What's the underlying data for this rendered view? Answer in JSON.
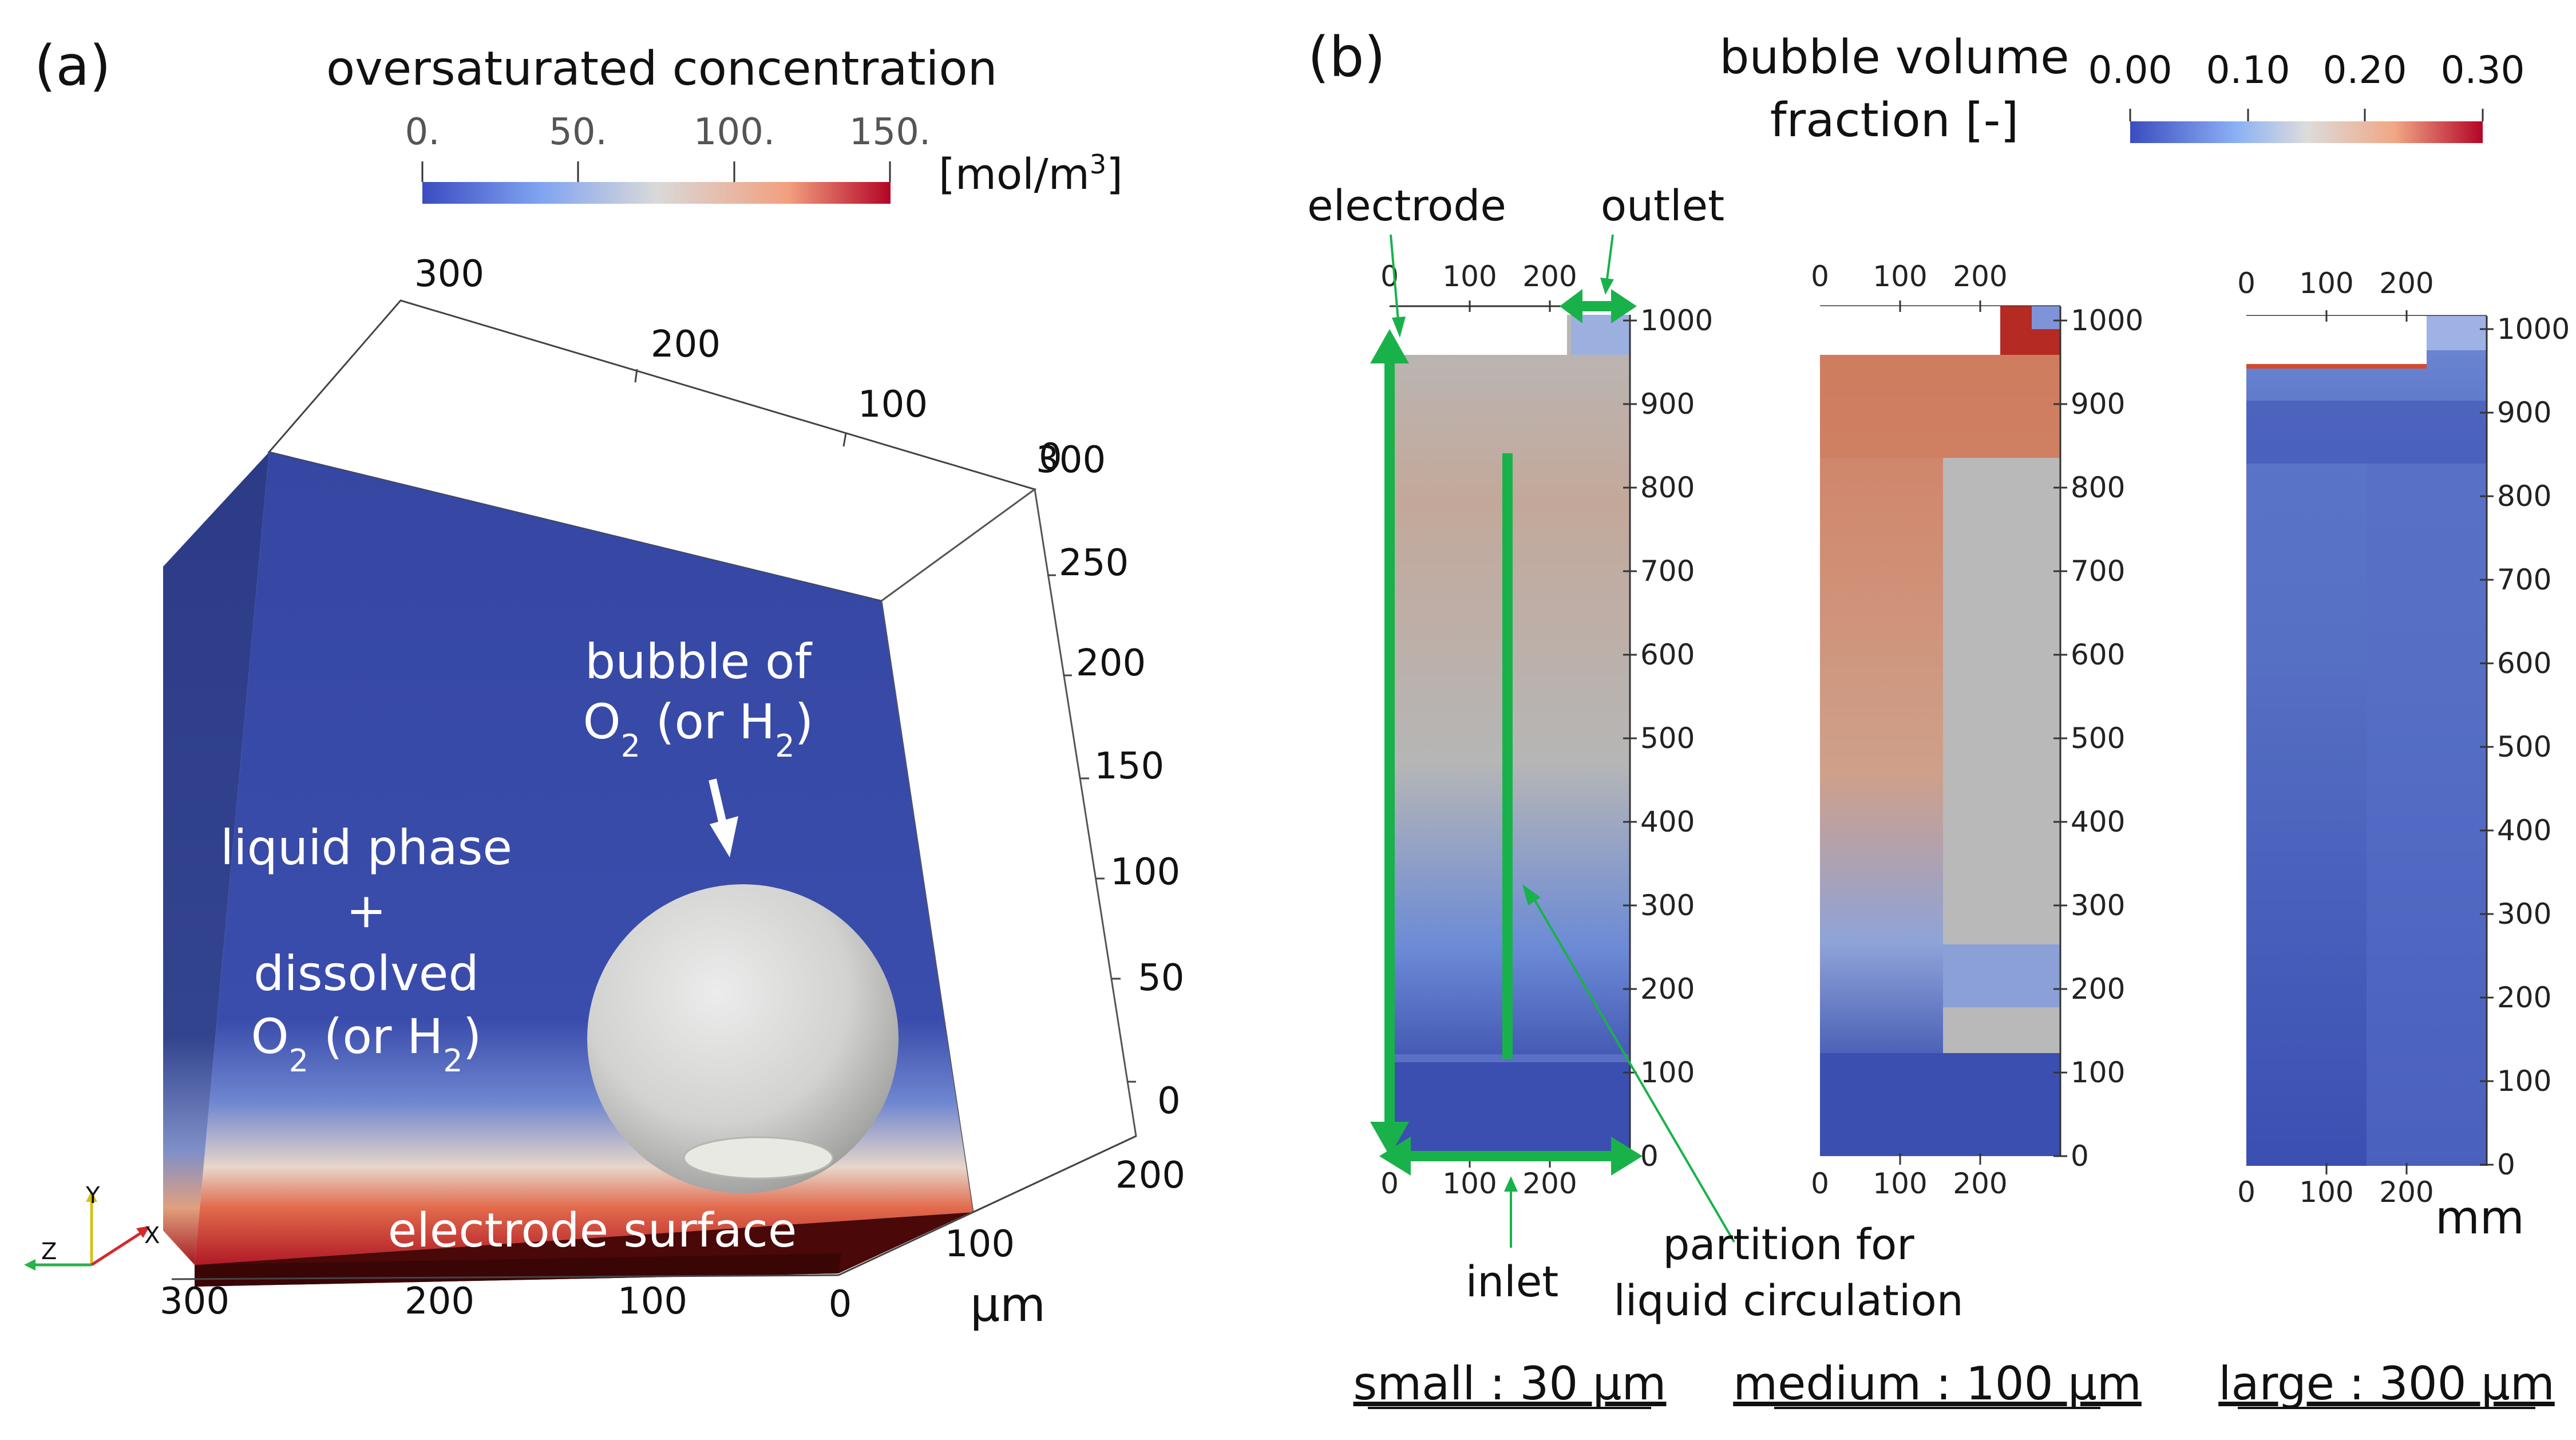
{
  "panel_a": {
    "label": "(a)",
    "colorbar": {
      "title": "oversaturated concentration",
      "ticks": [
        "0.",
        "50.",
        "100.",
        "150."
      ],
      "unit_prefix": "[mol/m",
      "unit_sup": "3",
      "unit_suffix": "]",
      "colors": [
        "#3b4cc0",
        "#c8c8c8",
        "#b40426"
      ]
    },
    "top_axis_ticks": [
      "300",
      "200",
      "100",
      "0"
    ],
    "right_axis_ticks": [
      "300",
      "250",
      "200",
      "150",
      "100",
      "50",
      "0"
    ],
    "bottom_left_ticks": [
      "300",
      "200",
      "100",
      "0"
    ],
    "bottom_right_ticks": [
      "200",
      "100"
    ],
    "unit": "μm",
    "bubble_label_line1": "bubble of",
    "bubble_label_o": "O",
    "bubble_label_sub1": "2",
    "bubble_label_mid": " (or H",
    "bubble_label_sub2": "2",
    "bubble_label_end": ")",
    "liquid_line1": "liquid phase",
    "liquid_line2": "+",
    "liquid_line3": "dissolved",
    "liquid_o": "O",
    "liquid_sub1": "2",
    "liquid_mid": " (or H",
    "liquid_sub2": "2",
    "liquid_end": ")",
    "electrode_surface": "electrode surface",
    "orientation_axes": [
      "Y",
      "Z",
      "X"
    ]
  },
  "panel_b": {
    "label": "(b)",
    "colorbar": {
      "title_line1": "bubble volume",
      "title_line2": "fraction [-]",
      "ticks": [
        "0.00",
        "0.10",
        "0.20",
        "0.30"
      ]
    },
    "annotations": {
      "electrode": "electrode",
      "outlet": "outlet",
      "inlet": "inlet",
      "partition_line1": "partition for",
      "partition_line2": "liquid circulation"
    },
    "x_ticks": [
      "0",
      "100",
      "200"
    ],
    "y_ticks": [
      "1000",
      "900",
      "800",
      "700",
      "600",
      "500",
      "400",
      "300",
      "200",
      "100",
      "0"
    ],
    "unit": "mm",
    "scales": [
      "small : 30 μm",
      "medium : 100 μm",
      "large : 300 μm"
    ],
    "accent_color": "#19b24a"
  }
}
